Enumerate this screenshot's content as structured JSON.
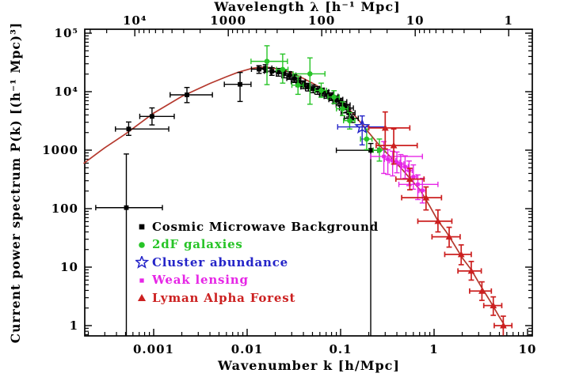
{
  "chart_data": {
    "type": "scatter",
    "title": "",
    "x_axis": {
      "label": "Wavenumber k [h/Mpc]",
      "scale": "log",
      "range": [
        0.00018,
        11.2
      ],
      "ticks": [
        {
          "value": 0.001,
          "label": "0.001"
        },
        {
          "value": 0.01,
          "label": "0.01"
        },
        {
          "value": 0.1,
          "label": "0.1"
        },
        {
          "value": 1,
          "label": "1"
        },
        {
          "value": 10,
          "label": "10"
        }
      ]
    },
    "top_axis": {
      "label": "Wavelength λ [h⁻¹ Mpc]",
      "scale": "log",
      "ticks": [
        {
          "lambda": 10000,
          "label": "10⁴"
        },
        {
          "lambda": 1000,
          "label": "1000"
        },
        {
          "lambda": 100,
          "label": "100"
        },
        {
          "lambda": 10,
          "label": "10"
        },
        {
          "lambda": 1,
          "label": "1"
        }
      ]
    },
    "y_axis": {
      "label": "Current power spectrum P(k) [(h⁻¹ Mpc)³]",
      "scale": "log",
      "range": [
        0.67,
        117000
      ],
      "ticks": [
        {
          "value": 100000,
          "label": "10⁵"
        },
        {
          "value": 10000,
          "label": "10⁴"
        },
        {
          "value": 1000,
          "label": "1000"
        },
        {
          "value": 100,
          "label": "100"
        },
        {
          "value": 10,
          "label": "10"
        },
        {
          "value": 1,
          "label": "1"
        }
      ]
    },
    "model_curve": {
      "color": "#b5392e",
      "points": [
        [
          0.00018,
          600
        ],
        [
          0.0003,
          1100
        ],
        [
          0.0005,
          1900
        ],
        [
          0.001,
          4300
        ],
        [
          0.002,
          8300
        ],
        [
          0.004,
          13800
        ],
        [
          0.006,
          18000
        ],
        [
          0.008,
          21500
        ],
        [
          0.011,
          24800
        ],
        [
          0.013,
          25900
        ],
        [
          0.016,
          26300
        ],
        [
          0.02,
          24900
        ],
        [
          0.025,
          22800
        ],
        [
          0.03,
          21200
        ],
        [
          0.04,
          16800
        ],
        [
          0.05,
          14000
        ],
        [
          0.06,
          11800
        ],
        [
          0.07,
          10200
        ],
        [
          0.09,
          7500
        ],
        [
          0.11,
          5900
        ],
        [
          0.13,
          4600
        ],
        [
          0.16,
          3100
        ],
        [
          0.2,
          2000
        ],
        [
          0.25,
          1300
        ],
        [
          0.3,
          950
        ],
        [
          0.38,
          640
        ],
        [
          0.45,
          480
        ],
        [
          0.55,
          330
        ],
        [
          0.7,
          215
        ],
        [
          0.9,
          110
        ],
        [
          1.1,
          62
        ],
        [
          1.35,
          40
        ],
        [
          1.6,
          26
        ],
        [
          2.0,
          14.5
        ],
        [
          2.5,
          9
        ],
        [
          3.2,
          4.6
        ],
        [
          4.0,
          2.6
        ],
        [
          5.0,
          1.4
        ],
        [
          5.8,
          0.95
        ]
      ]
    },
    "series": [
      {
        "name": "Cosmic Microwave Background",
        "marker": "square",
        "color": "#000000",
        "kerr_pct": 17,
        "perr_pct": 15,
        "points": [
          {
            "k": 0.00051,
            "P": 104,
            "kerr": [
              0.00024,
              0.00124
            ],
            "Perr": [
              0.67,
              860
            ]
          },
          {
            "k": 0.00054,
            "P": 2300,
            "kerr": [
              0.00039,
              0.00145
            ],
            "Perr": [
              1790,
              3030
            ]
          },
          {
            "k": 0.00096,
            "P": 3780,
            "kerr": [
              0.00071,
              0.00166
            ],
            "Perr": [
              2700,
              5280
            ]
          },
          {
            "k": 0.00227,
            "P": 8830,
            "kerr": [
              0.0015,
              0.00425
            ],
            "Perr": [
              6500,
              11800
            ]
          },
          {
            "k": 0.0084,
            "P": 13350,
            "kerr": [
              0.0057,
              0.011
            ],
            "Perr": [
              6800,
              21300
            ]
          },
          {
            "k": 0.0134,
            "P": 24200
          },
          {
            "k": 0.0157,
            "P": 25200
          },
          {
            "k": 0.0184,
            "P": 22400
          },
          {
            "k": 0.0216,
            "P": 21700
          },
          {
            "k": 0.0248,
            "P": 20300
          },
          {
            "k": 0.0284,
            "P": 19100
          },
          {
            "k": 0.032,
            "P": 16900
          },
          {
            "k": 0.0357,
            "P": 14900
          },
          {
            "k": 0.0402,
            "P": 13300
          },
          {
            "k": 0.0452,
            "P": 12100
          },
          {
            "k": 0.0507,
            "P": 11300
          },
          {
            "k": 0.0568,
            "P": 10600
          },
          {
            "k": 0.0637,
            "P": 9960
          },
          {
            "k": 0.0716,
            "P": 9100
          },
          {
            "k": 0.0802,
            "P": 8300
          },
          {
            "k": 0.0902,
            "P": 7350
          },
          {
            "k": 0.0995,
            "P": 6700
          },
          {
            "k": 0.108,
            "P": 5900
          },
          {
            "k": 0.117,
            "P": 5250
          },
          {
            "k": 0.122,
            "P": 4350
          },
          {
            "k": 0.132,
            "P": 3500
          },
          {
            "k": 0.21,
            "P": 995,
            "kerr": [
              0.09,
              0.25
            ],
            "Perr": [
              0.67,
              1300
            ]
          }
        ]
      },
      {
        "name": "2dF galaxies",
        "marker": "circle",
        "color": "#27c427",
        "kerr_pct": 14,
        "perr_pct": 30,
        "points": [
          {
            "k": 0.0163,
            "P": 33000,
            "kerr": [
              0.011,
              0.027
            ],
            "Perr": [
              13200,
              61000
            ]
          },
          {
            "k": 0.024,
            "P": 24000,
            "Perr": [
              14000,
              44000
            ]
          },
          {
            "k": 0.035,
            "P": 12900,
            "Perr": [
              9000,
              18500
            ]
          },
          {
            "k": 0.047,
            "P": 20200,
            "kerr": [
              0.031,
              0.068
            ],
            "Perr": [
              6100,
              37800
            ]
          },
          {
            "k": 0.062,
            "P": 10500,
            "Perr": [
              8000,
              14000
            ]
          },
          {
            "k": 0.085,
            "P": 8100,
            "Perr": [
              6300,
              10400
            ]
          },
          {
            "k": 0.105,
            "P": 5100,
            "Perr": [
              3900,
              6700
            ]
          },
          {
            "k": 0.125,
            "P": 3200,
            "Perr": [
              2300,
              4400
            ]
          },
          {
            "k": 0.19,
            "P": 1550,
            "Perr": [
              1020,
              2300
            ]
          },
          {
            "k": 0.26,
            "P": 1000,
            "Perr": [
              650,
              1550
            ]
          }
        ]
      },
      {
        "name": "Cluster abundance",
        "marker": "open-star",
        "color": "#2424c8",
        "points": [
          {
            "k": 0.17,
            "P": 2500,
            "kerr": [
              0.093,
              0.3
            ],
            "Perr": [
              1230,
              3850
            ]
          }
        ]
      },
      {
        "name": "Weak lensing",
        "marker": "small-square",
        "color": "#e626e6",
        "kerr_pct": 8,
        "perr_pct": 45,
        "points": [
          {
            "k": 0.29,
            "P": 780,
            "kerr": [
              0.21,
              0.75
            ],
            "Perr": [
              400,
              1400
            ]
          },
          {
            "k": 0.32,
            "P": 700
          },
          {
            "k": 0.36,
            "P": 660
          },
          {
            "k": 0.4,
            "P": 620,
            "Perr": [
              410,
              930
            ]
          },
          {
            "k": 0.44,
            "P": 580
          },
          {
            "k": 0.49,
            "P": 520,
            "Perr": [
              330,
              800
            ]
          },
          {
            "k": 0.54,
            "P": 450
          },
          {
            "k": 0.6,
            "P": 350,
            "Perr": [
              215,
              560
            ]
          },
          {
            "k": 0.67,
            "P": 260,
            "kerr": [
              0.42,
              1.1
            ]
          },
          {
            "k": 0.75,
            "P": 205,
            "Perr": [
              125,
              330
            ]
          }
        ]
      },
      {
        "name": "Lyman Alpha Forest",
        "marker": "triangle",
        "color": "#cc2020",
        "points": [
          {
            "k": 0.3,
            "P": 2400,
            "kerr": [
              0.2,
              0.55
            ],
            "Perr": [
              1050,
              4500
            ]
          },
          {
            "k": 0.37,
            "P": 1200,
            "kerr": [
              0.24,
              0.66
            ],
            "Perr": [
              580,
              2300
            ]
          },
          {
            "k": 0.55,
            "P": 320,
            "kerr": [
              0.39,
              0.78
            ],
            "Perr": [
              210,
              490
            ]
          },
          {
            "k": 0.82,
            "P": 154,
            "kerr": [
              0.45,
              1.2
            ],
            "Perr": [
              95,
              235
            ]
          },
          {
            "k": 1.1,
            "P": 61,
            "kerr": [
              0.67,
              1.55
            ],
            "Perr": [
              40,
              95
            ]
          },
          {
            "k": 1.45,
            "P": 33,
            "kerr": [
              0.95,
              1.9
            ],
            "Perr": [
              22,
              48
            ]
          },
          {
            "k": 1.95,
            "P": 16.5,
            "kerr": [
              1.3,
              2.5
            ],
            "Perr": [
              11,
              24
            ]
          },
          {
            "k": 2.5,
            "P": 8.6,
            "kerr": [
              1.8,
              3.2
            ],
            "Perr": [
              6,
              12.5
            ]
          },
          {
            "k": 3.25,
            "P": 3.9,
            "kerr": [
              2.4,
              4.1
            ],
            "Perr": [
              2.7,
              5.6
            ]
          },
          {
            "k": 4.3,
            "P": 2.2,
            "kerr": [
              3.4,
              5.3
            ],
            "Perr": [
              1.5,
              3.1
            ]
          },
          {
            "k": 5.5,
            "P": 1.0,
            "kerr": [
              4.4,
              6.8
            ],
            "Perr": [
              0.68,
              1.45
            ]
          }
        ]
      }
    ]
  }
}
